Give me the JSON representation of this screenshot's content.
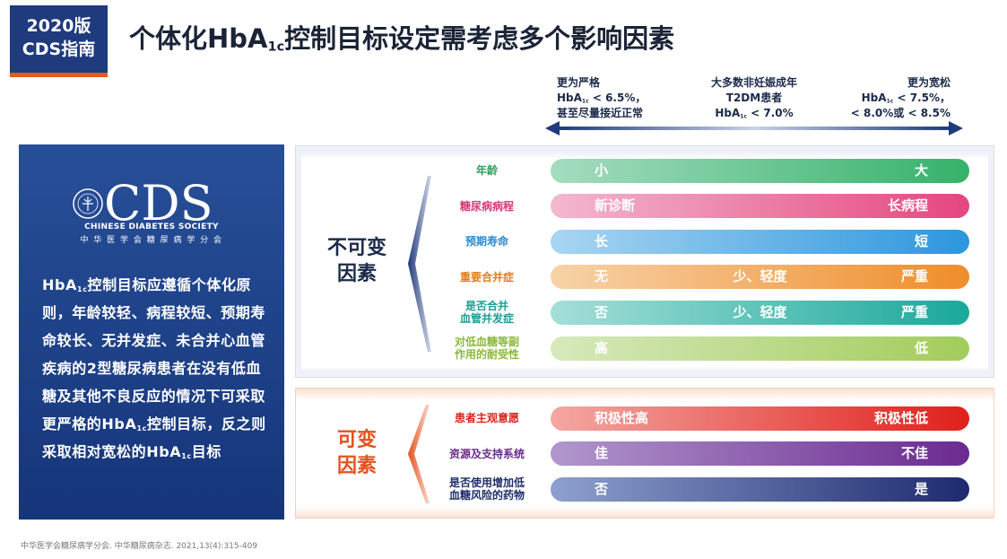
{
  "badge": {
    "line1": "2020版",
    "line2": "CDS指南"
  },
  "title": {
    "pre": "个体化HbA",
    "sub": "1c",
    "post": "控制目标设定需考虑多个影响因素"
  },
  "scale": {
    "left": {
      "l1": "更为严格",
      "l2a": "HbA",
      "l2sub": "1c",
      "l2b": " < 6.5%，",
      "l3": "甚至尽量接近正常"
    },
    "middle": {
      "l1": "大多数非妊娠成年",
      "l2": "T2DM患者",
      "l3a": "HbA",
      "l3sub": "1c",
      "l3b": " < 7.0%"
    },
    "right": {
      "l1": "更为宽松",
      "l2a": "HbA",
      "l2sub": "1c",
      "l2b": " < 7.5%，",
      "l3": "< 8.0%或 < 8.5%"
    }
  },
  "panel": {
    "logo_text": "CDS",
    "society_en": "CHINESE DIABETES SOCIETY",
    "society_cn": "中 华 医 学 会 糖 尿 病 学 分 会",
    "p1a": "HbA",
    "p1sub": "1c",
    "p1b": "控制目标应遵循个体化原则，年龄较轻、病程较短、预期寿命较长、无并发症、未合并心血管疾病的2型糖尿病患者在没有低血糖及其他不良反应的情况下可采取更严格的",
    "p2a": "HbA",
    "p2sub": "1c",
    "p2b": "控制目标，反之则采取相对宽松的",
    "p3a": "HbA",
    "p3sub": "1c",
    "p3b": "目标"
  },
  "fixed": {
    "label_l1": "不可变",
    "label_l2": "因素",
    "rows": [
      {
        "label": "年龄",
        "color": "#2f9e5a",
        "left": "小",
        "mid": "",
        "right": "大",
        "bar_from": "#a5dcc0",
        "bar_to": "#35b26a"
      },
      {
        "label": "糖尿病病程",
        "color": "#d63a78",
        "left": "新诊断",
        "mid": "",
        "right": "长病程",
        "bar_from": "#f3b8cd",
        "bar_to": "#e5467f"
      },
      {
        "label": "预期寿命",
        "color": "#2a8bd2",
        "left": "长",
        "mid": "",
        "right": "短",
        "bar_from": "#a9d5f2",
        "bar_to": "#2c96dd"
      },
      {
        "label": "重要合并症",
        "color": "#e27d1e",
        "left": "无",
        "mid": "少、轻度",
        "right": "严重",
        "bar_from": "#f7d3a8",
        "bar_to": "#ef8d2a"
      },
      {
        "label": "是否合并\n血管并发症",
        "color": "#1a9f95",
        "left": "否",
        "mid": "少、轻度",
        "right": "严重",
        "bar_from": "#a5dfd8",
        "bar_to": "#1aa89b"
      },
      {
        "label": "对低血糖等副\n作用的耐受性",
        "color": "#8ab93a",
        "left": "高",
        "mid": "",
        "right": "低",
        "bar_from": "#d7e9bc",
        "bar_to": "#a2cc5b"
      }
    ]
  },
  "variable": {
    "label_l1": "可变",
    "label_l2": "因素",
    "rows": [
      {
        "label": "患者主观意愿",
        "color": "#d9261c",
        "left": "积极性高",
        "mid": "",
        "right": "积极性低",
        "bar_from": "#f4a7a3",
        "bar_to": "#e0201b"
      },
      {
        "label": "资源及支持系统",
        "color": "#6a2c8e",
        "left": "佳",
        "mid": "",
        "right": "不佳",
        "bar_from": "#b197cd",
        "bar_to": "#6b2a90"
      },
      {
        "label": "是否使用增加低\n血糖风险的药物",
        "color": "#1e2f6b",
        "left": "否",
        "mid": "",
        "right": "是",
        "bar_from": "#8ea0cf",
        "bar_to": "#1e2a6e"
      }
    ]
  },
  "footer": "中华医学会糖尿病学分会. 中华糖尿病杂志. 2021,13(4):315-409"
}
